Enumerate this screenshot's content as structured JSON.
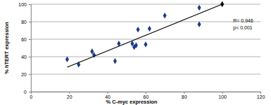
{
  "chart_data": {
    "type": "scatter",
    "x_label": "% C-myc expression",
    "y_label": "% hTERT expression",
    "annotations": [
      {
        "text": "R= 0.946"
      },
      {
        "text": "p< 0.001"
      }
    ],
    "xlim": [
      0,
      120
    ],
    "xticks": [
      0,
      20,
      40,
      60,
      80,
      100,
      120
    ],
    "ylim": [
      0,
      100
    ],
    "yticks": [
      0,
      20,
      40,
      60,
      80,
      100
    ],
    "grid": true,
    "series": [
      {
        "type": "scatter",
        "color": "#1a3a8c",
        "marker": "diamond",
        "x": [
          19,
          25,
          32,
          33,
          44,
          46,
          53,
          54,
          55,
          56,
          60,
          62,
          70,
          88,
          88
        ],
        "values": [
          37,
          31,
          46,
          42,
          35,
          55,
          55,
          51,
          53,
          71,
          54,
          72,
          87,
          96,
          77
        ]
      },
      {
        "type": "scatter",
        "color": "#000000",
        "marker": "diamond",
        "x": [
          100
        ],
        "values": [
          100
        ]
      },
      {
        "type": "line",
        "color": "#000000",
        "x": [
          19,
          100
        ],
        "values": [
          28,
          100
        ]
      }
    ]
  }
}
